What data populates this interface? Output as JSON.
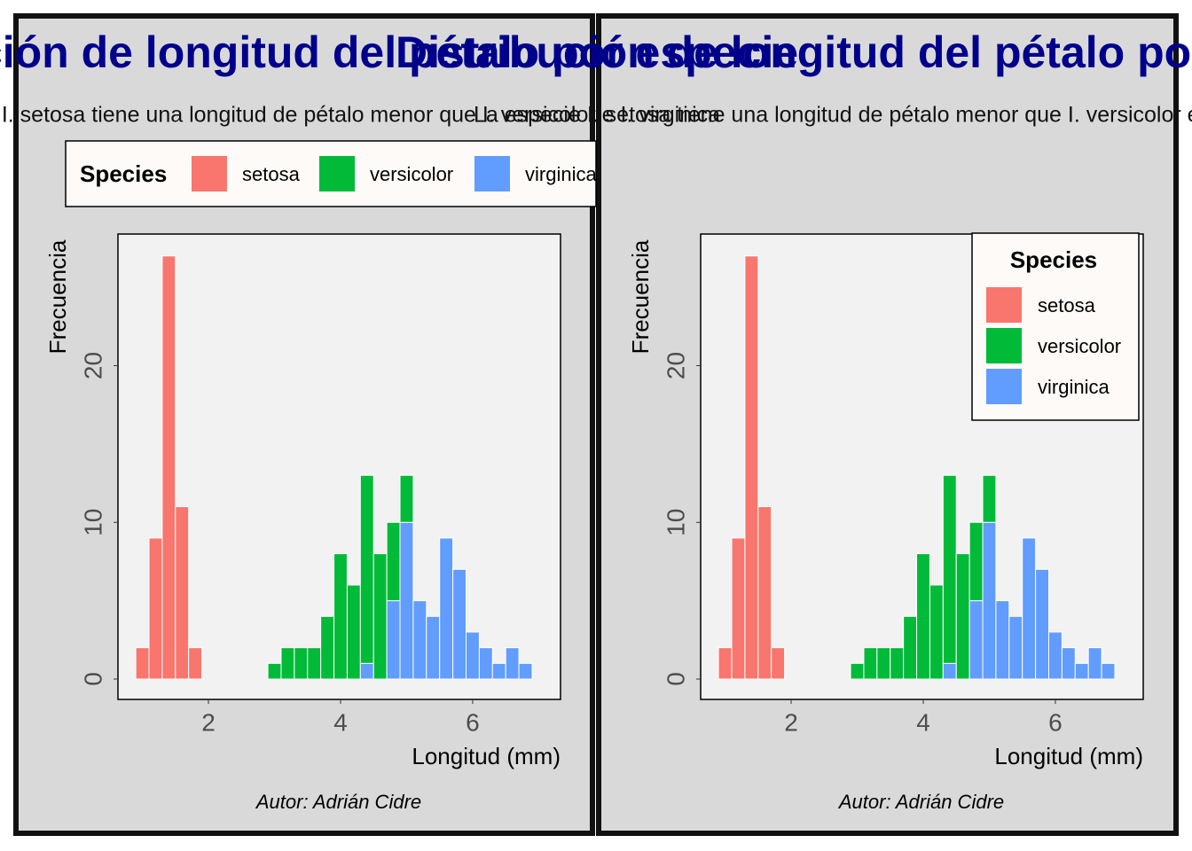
{
  "chart_data": [
    {
      "type": "histogram",
      "title": "Distribución de longitud del pétalo por especie",
      "subtitle": "La especie I. setosa tiene una longitud de pétalo menor que I. versicolor e I. virginica",
      "caption": "Autor: Adrián Cidre",
      "x_label": "Longitud (mm)",
      "y_label": "Frecuencia",
      "legend_title": "Species",
      "legend_position": "top",
      "bins": [
        0.9,
        1.1,
        1.3,
        1.5,
        1.7,
        1.9,
        2.1,
        2.3,
        2.5,
        2.7,
        2.9,
        3.1,
        3.3,
        3.5,
        3.7,
        3.9,
        4.1,
        4.3,
        4.5,
        4.7,
        4.9,
        5.1,
        5.3,
        5.5,
        5.7,
        5.9,
        6.1,
        6.3,
        6.5,
        6.7,
        6.9
      ],
      "series": [
        {
          "name": "setosa",
          "color": "#F8766D",
          "values": [
            2,
            9,
            27,
            11,
            2,
            0,
            0,
            0,
            0,
            0,
            0,
            0,
            0,
            0,
            0,
            0,
            0,
            0,
            0,
            0,
            0,
            0,
            0,
            0,
            0,
            0,
            0,
            0,
            0,
            0
          ]
        },
        {
          "name": "versicolor",
          "color": "#00BA38",
          "values": [
            0,
            0,
            0,
            0,
            0,
            0,
            0,
            0,
            0,
            0,
            1,
            2,
            2,
            2,
            4,
            8,
            6,
            12,
            8,
            5,
            3,
            0,
            0,
            0,
            0,
            0,
            0,
            0,
            0,
            0
          ]
        },
        {
          "name": "virginica",
          "color": "#619CFF",
          "values": [
            0,
            0,
            0,
            0,
            0,
            0,
            0,
            0,
            0,
            0,
            0,
            0,
            0,
            0,
            0,
            0,
            0,
            1,
            0,
            5,
            10,
            5,
            4,
            9,
            7,
            3,
            2,
            1,
            2,
            1
          ]
        }
      ],
      "xlim": [
        0.63,
        7.33
      ],
      "ylim": [
        -1.3,
        28.4
      ],
      "xticks": [
        2,
        4,
        6
      ],
      "yticks": [
        0,
        10,
        20
      ]
    },
    {
      "type": "histogram",
      "title": "Distribución de longitud del pétalo por especie",
      "subtitle": "La especie I. setosa tiene una longitud de pétalo menor que I. versicolor e I. virginica",
      "caption": "Autor: Adrián Cidre",
      "x_label": "Longitud (mm)",
      "y_label": "Frecuencia",
      "legend_title": "Species",
      "legend_position": "top-right",
      "bins": [
        0.9,
        1.1,
        1.3,
        1.5,
        1.7,
        1.9,
        2.1,
        2.3,
        2.5,
        2.7,
        2.9,
        3.1,
        3.3,
        3.5,
        3.7,
        3.9,
        4.1,
        4.3,
        4.5,
        4.7,
        4.9,
        5.1,
        5.3,
        5.5,
        5.7,
        5.9,
        6.1,
        6.3,
        6.5,
        6.7,
        6.9
      ],
      "series": [
        {
          "name": "setosa",
          "color": "#F8766D",
          "values": [
            2,
            9,
            27,
            11,
            2,
            0,
            0,
            0,
            0,
            0,
            0,
            0,
            0,
            0,
            0,
            0,
            0,
            0,
            0,
            0,
            0,
            0,
            0,
            0,
            0,
            0,
            0,
            0,
            0,
            0
          ]
        },
        {
          "name": "versicolor",
          "color": "#00BA38",
          "values": [
            0,
            0,
            0,
            0,
            0,
            0,
            0,
            0,
            0,
            0,
            1,
            2,
            2,
            2,
            4,
            8,
            6,
            12,
            8,
            5,
            3,
            0,
            0,
            0,
            0,
            0,
            0,
            0,
            0,
            0
          ]
        },
        {
          "name": "virginica",
          "color": "#619CFF",
          "values": [
            0,
            0,
            0,
            0,
            0,
            0,
            0,
            0,
            0,
            0,
            0,
            0,
            0,
            0,
            0,
            0,
            0,
            1,
            0,
            5,
            10,
            5,
            4,
            9,
            7,
            3,
            2,
            1,
            2,
            1
          ]
        }
      ],
      "xlim": [
        0.63,
        7.33
      ],
      "ylim": [
        -1.3,
        28.4
      ],
      "xticks": [
        2,
        4,
        6
      ],
      "yticks": [
        0,
        10,
        20
      ]
    }
  ]
}
